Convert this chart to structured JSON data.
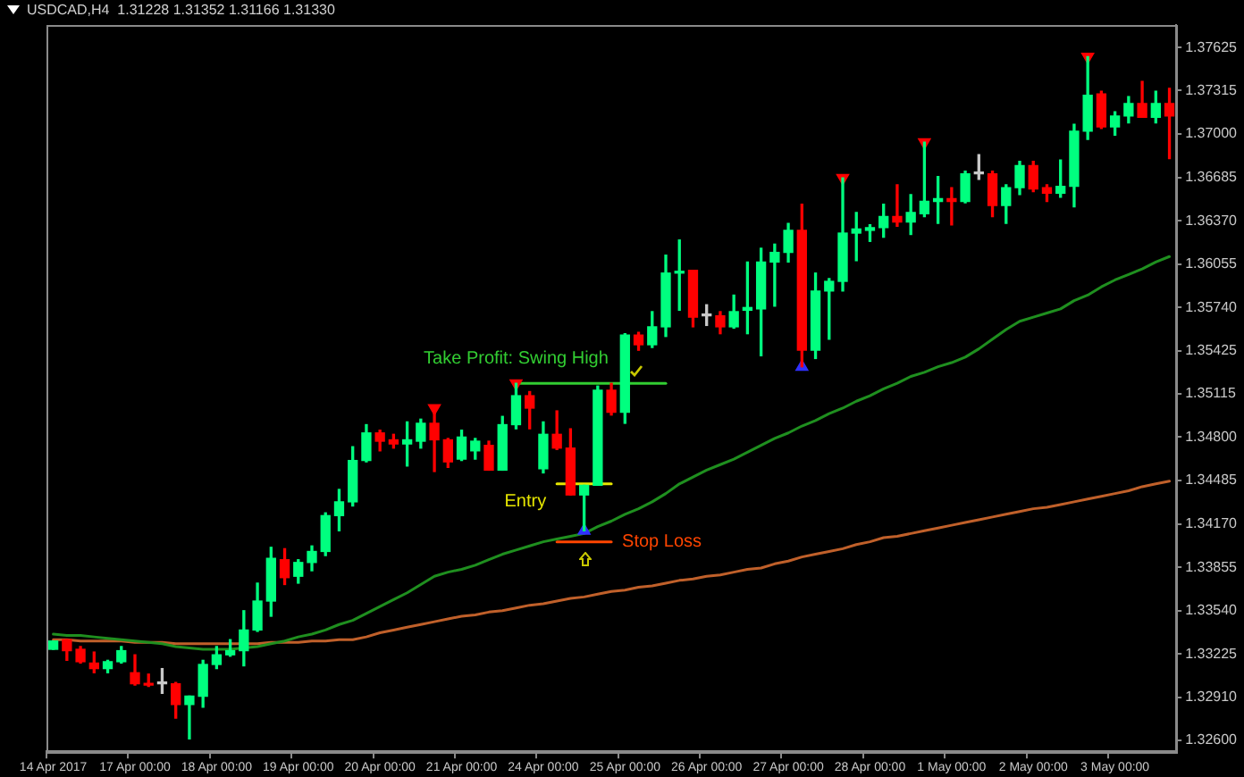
{
  "chart_data": {
    "type": "candlestick",
    "title": "USDCAD,H4  1.31228 1.31352 1.31166 1.31330",
    "categories": [
      "14 Apr 2017",
      null,
      null,
      null,
      null,
      null,
      "17 Apr 00:00",
      null,
      null,
      null,
      null,
      null,
      "18 Apr 00:00",
      null,
      null,
      null,
      null,
      null,
      "19 Apr 00:00",
      null,
      null,
      null,
      null,
      null,
      "20 Apr 00:00",
      null,
      null,
      null,
      null,
      null,
      "21 Apr 00:00",
      null,
      null,
      null,
      null,
      null,
      "24 Apr 00:00",
      null,
      null,
      null,
      null,
      null,
      "25 Apr 00:00",
      null,
      null,
      null,
      null,
      null,
      "26 Apr 00:00",
      null,
      null,
      null,
      null,
      null,
      "27 Apr 00:00",
      null,
      null,
      null,
      null,
      null,
      "28 Apr 00:00",
      null,
      null,
      null,
      null,
      null,
      "1 May 00:00",
      null,
      null,
      null,
      null,
      null,
      "2 May 00:00",
      null,
      null,
      null,
      null,
      null,
      "3 May 00:00",
      null,
      null,
      null,
      null
    ],
    "ohlc": [
      [
        1.3326,
        1.3332,
        1.3326,
        1.3332
      ],
      [
        1.3333,
        1.3333,
        1.3318,
        1.3325
      ],
      [
        1.3326,
        1.3328,
        1.3316,
        1.3317
      ],
      [
        1.3316,
        1.3324,
        1.3309,
        1.3312
      ],
      [
        1.3312,
        1.3318,
        1.3309,
        1.3317
      ],
      [
        1.3317,
        1.3328,
        1.3316,
        1.3325
      ],
      [
        1.3309,
        1.3322,
        1.33,
        1.3301
      ],
      [
        1.3301,
        1.3308,
        1.3299,
        1.33
      ],
      [
        1.3301,
        1.3312,
        1.3294,
        1.3301
      ],
      [
        1.3301,
        1.3302,
        1.3276,
        1.3286
      ],
      [
        1.3286,
        1.3292,
        1.3261,
        1.3292
      ],
      [
        1.3292,
        1.3318,
        1.3284,
        1.3315
      ],
      [
        1.3315,
        1.3328,
        1.3312,
        1.3322
      ],
      [
        1.3322,
        1.3333,
        1.3321,
        1.3325
      ],
      [
        1.3325,
        1.3354,
        1.3314,
        1.334
      ],
      [
        1.334,
        1.3374,
        1.3339,
        1.3361
      ],
      [
        1.3361,
        1.34,
        1.335,
        1.3392
      ],
      [
        1.3391,
        1.3399,
        1.3373,
        1.3378
      ],
      [
        1.3379,
        1.3391,
        1.3374,
        1.3389
      ],
      [
        1.3389,
        1.3401,
        1.3383,
        1.3397
      ],
      [
        1.3397,
        1.3425,
        1.3394,
        1.3423
      ],
      [
        1.3423,
        1.3442,
        1.3412,
        1.3433
      ],
      [
        1.3433,
        1.3473,
        1.343,
        1.3463
      ],
      [
        1.3463,
        1.3489,
        1.3462,
        1.3483
      ],
      [
        1.3483,
        1.3485,
        1.347,
        1.3477
      ],
      [
        1.3478,
        1.3482,
        1.3472,
        1.3475
      ],
      [
        1.3475,
        1.3491,
        1.3459,
        1.3478
      ],
      [
        1.3477,
        1.3493,
        1.3472,
        1.349
      ],
      [
        1.349,
        1.3501,
        1.3455,
        1.3478
      ],
      [
        1.3478,
        1.3479,
        1.3458,
        1.3462
      ],
      [
        1.3464,
        1.3485,
        1.3463,
        1.348
      ],
      [
        1.347,
        1.3479,
        1.3464,
        1.3477
      ],
      [
        1.3474,
        1.3477,
        1.3456,
        1.3456
      ],
      [
        1.3456,
        1.3495,
        1.3456,
        1.3489
      ],
      [
        1.3489,
        1.3519,
        1.3486,
        1.351
      ],
      [
        1.351,
        1.3513,
        1.3486,
        1.3501
      ],
      [
        1.3457,
        1.3491,
        1.3454,
        1.3482
      ],
      [
        1.3482,
        1.3499,
        1.3471,
        1.3472
      ],
      [
        1.3472,
        1.3486,
        1.3438,
        1.3438
      ],
      [
        1.3438,
        1.3445,
        1.3412,
        1.3445
      ],
      [
        1.3445,
        1.3517,
        1.3445,
        1.3514
      ],
      [
        1.3514,
        1.3519,
        1.3496,
        1.3498
      ],
      [
        1.3498,
        1.3555,
        1.349,
        1.3554
      ],
      [
        1.3554,
        1.3556,
        1.3543,
        1.3547
      ],
      [
        1.3547,
        1.3571,
        1.3545,
        1.356
      ],
      [
        1.356,
        1.3612,
        1.3553,
        1.3599
      ],
      [
        1.3599,
        1.3623,
        1.3572,
        1.36
      ],
      [
        1.3601,
        1.3601,
        1.356,
        1.3567
      ],
      [
        1.3568,
        1.3576,
        1.3561,
        1.3568
      ],
      [
        1.3568,
        1.3571,
        1.3555,
        1.356
      ],
      [
        1.356,
        1.3583,
        1.3559,
        1.3571
      ],
      [
        1.3572,
        1.3607,
        1.3555,
        1.3574
      ],
      [
        1.3573,
        1.3617,
        1.3539,
        1.3607
      ],
      [
        1.3607,
        1.362,
        1.3575,
        1.3614
      ],
      [
        1.3614,
        1.3635,
        1.3607,
        1.363
      ],
      [
        1.363,
        1.3649,
        1.3531,
        1.3543
      ],
      [
        1.3543,
        1.3599,
        1.3537,
        1.3586
      ],
      [
        1.3586,
        1.3595,
        1.3551,
        1.3593
      ],
      [
        1.3593,
        1.3668,
        1.3586,
        1.3628
      ],
      [
        1.3628,
        1.3643,
        1.3608,
        1.3631
      ],
      [
        1.363,
        1.3634,
        1.3622,
        1.3632
      ],
      [
        1.3632,
        1.3649,
        1.3625,
        1.364
      ],
      [
        1.364,
        1.3663,
        1.3633,
        1.3636
      ],
      [
        1.3636,
        1.3656,
        1.3627,
        1.3643
      ],
      [
        1.3642,
        1.3694,
        1.364,
        1.3651
      ],
      [
        1.3651,
        1.3669,
        1.3635,
        1.3653
      ],
      [
        1.3653,
        1.3661,
        1.3634,
        1.3651
      ],
      [
        1.3651,
        1.3673,
        1.365,
        1.3671
      ],
      [
        1.3671,
        1.3685,
        1.3667,
        1.3671
      ],
      [
        1.3671,
        1.3673,
        1.364,
        1.3648
      ],
      [
        1.3648,
        1.3663,
        1.3635,
        1.3661
      ],
      [
        1.3661,
        1.368,
        1.3656,
        1.3677
      ],
      [
        1.3677,
        1.368,
        1.3658,
        1.366
      ],
      [
        1.3661,
        1.3663,
        1.3651,
        1.3657
      ],
      [
        1.3657,
        1.3681,
        1.3654,
        1.3662
      ],
      [
        1.3662,
        1.3707,
        1.3647,
        1.3702
      ],
      [
        1.3702,
        1.3756,
        1.3696,
        1.3728
      ],
      [
        1.3729,
        1.3731,
        1.3704,
        1.3705
      ],
      [
        1.3705,
        1.3716,
        1.3699,
        1.3713
      ],
      [
        1.3713,
        1.3727,
        1.3708,
        1.3722
      ],
      [
        1.3722,
        1.3738,
        1.3712,
        1.3712
      ],
      [
        1.3712,
        1.3731,
        1.3708,
        1.3722
      ],
      [
        1.3722,
        1.3733,
        1.3682,
        1.3713
      ]
    ],
    "colors": [
      "#00ff7f",
      "#ff0000",
      "#ff0000",
      "#ff0000",
      "#00ff7f",
      "#00ff7f",
      "#ff0000",
      "#ff0000",
      "#c8c8c8",
      "#ff0000",
      "#00ff7f",
      "#00ff7f",
      "#00ff7f",
      "#00ff7f",
      "#00ff7f",
      "#00ff7f",
      "#00ff7f",
      "#ff0000",
      "#00ff7f",
      "#00ff7f",
      "#00ff7f",
      "#00ff7f",
      "#00ff7f",
      "#00ff7f",
      "#ff0000",
      "#ff0000",
      "#00ff7f",
      "#00ff7f",
      "#ff0000",
      "#ff0000",
      "#00ff7f",
      "#00ff7f",
      "#ff0000",
      "#00ff7f",
      "#00ff7f",
      "#ff0000",
      "#00ff7f",
      "#ff0000",
      "#ff0000",
      "#00ff7f",
      "#00ff7f",
      "#ff0000",
      "#00ff7f",
      "#ff0000",
      "#00ff7f",
      "#00ff7f",
      "#00ff7f",
      "#ff0000",
      "#c8c8c8",
      "#ff0000",
      "#00ff7f",
      "#00ff7f",
      "#00ff7f",
      "#00ff7f",
      "#00ff7f",
      "#ff0000",
      "#00ff7f",
      "#00ff7f",
      "#00ff7f",
      "#00ff7f",
      "#00ff7f",
      "#00ff7f",
      "#ff0000",
      "#00ff7f",
      "#00ff7f",
      "#00ff7f",
      "#ff0000",
      "#00ff7f",
      "#c8c8c8",
      "#ff0000",
      "#00ff7f",
      "#00ff7f",
      "#ff0000",
      "#ff0000",
      "#00ff7f",
      "#00ff7f",
      "#00ff7f",
      "#ff0000",
      "#00ff7f",
      "#00ff7f",
      "#ff0000",
      "#00ff7f",
      "#ff0000"
    ],
    "ylim": [
      1.3252,
      1.3779
    ],
    "yticks": [
      {
        "value": 1.326,
        "label": "1.32600"
      },
      {
        "value": 1.3291,
        "label": "1.32910"
      },
      {
        "value": 1.33225,
        "label": "1.33225"
      },
      {
        "value": 1.3354,
        "label": "1.33540"
      },
      1.33855,
      {
        "value": 1.3417,
        "label": "1.34170"
      },
      1.34485,
      {
        "value": 1.348,
        "label": "1.34800"
      },
      1.35115,
      1.35425,
      {
        "value": 1.3574,
        "label": "1.35740"
      },
      1.36055,
      {
        "value": 1.3637,
        "label": "1.36370"
      },
      1.36685,
      {
        "value": 1.37,
        "label": "1.37000"
      },
      1.37315,
      1.37625
    ],
    "series": [
      {
        "type": "line",
        "color": "#1f8f1f",
        "values": [
          1.3337,
          1.3336,
          1.3336,
          1.3335,
          1.3334,
          1.3333,
          1.3332,
          1.3331,
          1.333,
          1.3328,
          1.3327,
          1.3326,
          1.3326,
          1.3326,
          1.3327,
          1.3328,
          1.333,
          1.3332,
          1.3335,
          1.3337,
          1.334,
          1.3344,
          1.3347,
          1.3352,
          1.3357,
          1.3362,
          1.3367,
          1.3373,
          1.3379,
          1.3382,
          1.3384,
          1.3387,
          1.3391,
          1.3395,
          1.3398,
          1.3401,
          1.3404,
          1.3406,
          1.3408,
          1.341,
          1.3415,
          1.3419,
          1.3424,
          1.3428,
          1.3433,
          1.3439,
          1.3446,
          1.3451,
          1.3456,
          1.346,
          1.3464,
          1.3469,
          1.3474,
          1.3479,
          1.3483,
          1.3488,
          1.3492,
          1.3497,
          1.3501,
          1.3506,
          1.351,
          1.3515,
          1.3519,
          1.3524,
          1.3527,
          1.3531,
          1.3534,
          1.3538,
          1.3544,
          1.3551,
          1.3558,
          1.3564,
          1.3567,
          1.357,
          1.3573,
          1.3579,
          1.3583,
          1.3589,
          1.3594,
          1.3598,
          1.3602,
          1.3607,
          1.3611
        ]
      },
      {
        "type": "line",
        "color": "#c0602a",
        "values": [
          1.3333,
          1.3333,
          1.3332,
          1.3332,
          1.3332,
          1.3332,
          1.3331,
          1.3331,
          1.3331,
          1.333,
          1.333,
          1.333,
          1.333,
          1.333,
          1.333,
          1.333,
          1.3331,
          1.3331,
          1.3331,
          1.3332,
          1.3332,
          1.3333,
          1.3333,
          1.3335,
          1.3338,
          1.334,
          1.3342,
          1.3344,
          1.3346,
          1.3348,
          1.335,
          1.3351,
          1.3353,
          1.3354,
          1.3356,
          1.3358,
          1.3359,
          1.3361,
          1.3363,
          1.3364,
          1.3366,
          1.3368,
          1.3369,
          1.3371,
          1.3372,
          1.3374,
          1.3376,
          1.3377,
          1.3379,
          1.338,
          1.3382,
          1.3384,
          1.3385,
          1.3388,
          1.339,
          1.3393,
          1.3395,
          1.3397,
          1.3399,
          1.3402,
          1.3404,
          1.3407,
          1.3408,
          1.341,
          1.3412,
          1.3414,
          1.3416,
          1.3418,
          1.342,
          1.3422,
          1.3424,
          1.3426,
          1.3428,
          1.3429,
          1.3431,
          1.3433,
          1.3435,
          1.3437,
          1.3439,
          1.3441,
          1.3444,
          1.3446,
          1.3448
        ]
      },
      {
        "type": "line",
        "name": "Take Profit: Swing High",
        "color": "#32cd32",
        "values": [
          null,
          null,
          null,
          null,
          null,
          null,
          null,
          null,
          null,
          null,
          null,
          null,
          null,
          null,
          null,
          null,
          null,
          null,
          null,
          null,
          null,
          null,
          null,
          null,
          null,
          null,
          null,
          null,
          null,
          null,
          null,
          null,
          null,
          null,
          1.3519,
          1.3519,
          1.3519,
          1.3519,
          1.3519,
          1.3519,
          1.3519,
          1.3519,
          1.3519,
          1.3519,
          1.3519,
          1.3519,
          null,
          null,
          null,
          null,
          null,
          null,
          null,
          null,
          null,
          null,
          null,
          null,
          null,
          null,
          null,
          null,
          null,
          null,
          null,
          null,
          null,
          null,
          null,
          null,
          null,
          null,
          null,
          null,
          null,
          null,
          null,
          null,
          null,
          null,
          null,
          null,
          null
        ]
      },
      {
        "type": "line",
        "name": "Entry",
        "color": "#e6e600",
        "values": [
          null,
          null,
          null,
          null,
          null,
          null,
          null,
          null,
          null,
          null,
          null,
          null,
          null,
          null,
          null,
          null,
          null,
          null,
          null,
          null,
          null,
          null,
          null,
          null,
          null,
          null,
          null,
          null,
          null,
          null,
          null,
          null,
          null,
          null,
          null,
          null,
          null,
          1.3446,
          1.3446,
          1.3446,
          1.3446,
          1.3446,
          null,
          null,
          null,
          null,
          null,
          null,
          null,
          null,
          null,
          null,
          null,
          null,
          null,
          null,
          null,
          null,
          null,
          null,
          null,
          null,
          null,
          null,
          null,
          null,
          null,
          null,
          null,
          null,
          null,
          null,
          null,
          null,
          null,
          null,
          null,
          null,
          null,
          null,
          null,
          null,
          null
        ]
      },
      {
        "type": "line",
        "name": "Stop Loss",
        "color": "#ff4500",
        "values": [
          null,
          null,
          null,
          null,
          null,
          null,
          null,
          null,
          null,
          null,
          null,
          null,
          null,
          null,
          null,
          null,
          null,
          null,
          null,
          null,
          null,
          null,
          null,
          null,
          null,
          null,
          null,
          null,
          null,
          null,
          null,
          null,
          null,
          null,
          null,
          null,
          null,
          1.3404,
          1.3404,
          1.3404,
          1.3404,
          1.3404,
          null,
          null,
          null,
          null,
          null,
          null,
          null,
          null,
          null,
          null,
          null,
          null,
          null,
          null,
          null,
          null,
          null,
          null,
          null,
          null,
          null,
          null,
          null,
          null,
          null,
          null,
          null,
          null,
          null,
          null,
          null,
          null,
          null,
          null,
          null,
          null,
          null,
          null,
          null,
          null,
          null
        ]
      },
      {
        "type": "scatter",
        "marker": "triangle",
        "color": "#ff0000",
        "values": [
          null,
          null,
          null,
          null,
          null,
          null,
          null,
          null,
          null,
          null,
          null,
          null,
          null,
          null,
          null,
          null,
          null,
          null,
          null,
          null,
          null,
          null,
          null,
          null,
          null,
          null,
          null,
          null,
          1.3501,
          null,
          null,
          null,
          null,
          null,
          1.3519,
          null,
          null,
          null,
          null,
          null,
          null,
          null,
          null,
          null,
          null,
          null,
          null,
          null,
          null,
          null,
          null,
          null,
          null,
          null,
          null,
          null,
          null,
          null,
          1.3668,
          null,
          null,
          null,
          null,
          null,
          1.3694,
          null,
          null,
          null,
          null,
          null,
          null,
          null,
          null,
          null,
          null,
          null,
          1.3756,
          null,
          null,
          null,
          null,
          null,
          null
        ]
      },
      {
        "type": "scatter",
        "marker": "triangle",
        "color": "#3030ff",
        "values": [
          null,
          null,
          null,
          null,
          null,
          null,
          null,
          null,
          null,
          null,
          null,
          null,
          null,
          null,
          null,
          null,
          null,
          null,
          null,
          null,
          null,
          null,
          null,
          null,
          null,
          null,
          null,
          null,
          null,
          null,
          null,
          null,
          null,
          null,
          null,
          null,
          null,
          null,
          null,
          1.3412,
          null,
          null,
          null,
          null,
          null,
          null,
          null,
          null,
          null,
          null,
          null,
          null,
          null,
          null,
          null,
          1.3531,
          null,
          null,
          null,
          null,
          null,
          null,
          null,
          null,
          null,
          null,
          null,
          null,
          null,
          null,
          null,
          null,
          null,
          null,
          null,
          null,
          null,
          null,
          null,
          null,
          null,
          null,
          null
        ]
      }
    ]
  }
}
